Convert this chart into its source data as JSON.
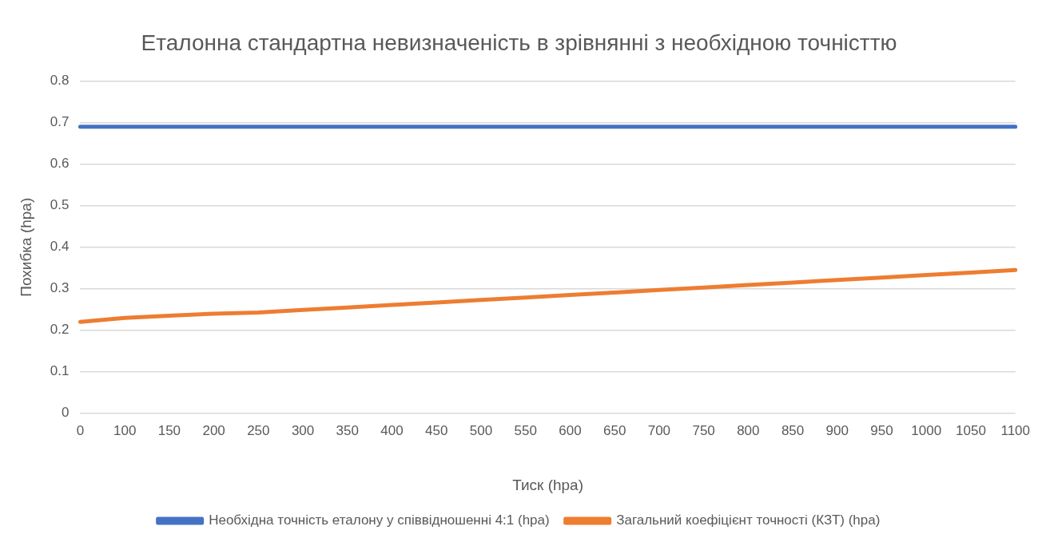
{
  "chart_data": {
    "type": "line",
    "title": "Еталонна стандартна невизначеність в зрівнянні з необхідною точністтю",
    "xlabel": "Тиск (hpa)",
    "ylabel": "Похибка (hpa)",
    "categories": [
      "0",
      "100",
      "150",
      "200",
      "250",
      "300",
      "350",
      "400",
      "450",
      "500",
      "550",
      "600",
      "650",
      "700",
      "750",
      "800",
      "850",
      "900",
      "950",
      "1000",
      "1050",
      "1100"
    ],
    "series": [
      {
        "name": "Необхідна точність еталону у співвідношенні 4:1 (hpa)",
        "color": "#4472c4",
        "values": [
          0.69,
          0.69,
          0.69,
          0.69,
          0.69,
          0.69,
          0.69,
          0.69,
          0.69,
          0.69,
          0.69,
          0.69,
          0.69,
          0.69,
          0.69,
          0.69,
          0.69,
          0.69,
          0.69,
          0.69,
          0.69,
          0.69
        ]
      },
      {
        "name": "Загальний коефіцієнт точності (КЗТ) (hpa)",
        "color": "#ed7d31",
        "values": [
          0.22,
          0.23,
          0.235,
          0.24,
          0.243,
          0.249,
          0.255,
          0.261,
          0.267,
          0.273,
          0.279,
          0.285,
          0.291,
          0.297,
          0.303,
          0.309,
          0.315,
          0.321,
          0.327,
          0.333,
          0.339,
          0.345
        ]
      }
    ],
    "ylim": [
      0,
      0.8
    ],
    "yticks": [
      0,
      0.1,
      0.2,
      0.3,
      0.4,
      0.5,
      0.6,
      0.7,
      0.8
    ],
    "grid": "y",
    "legend": "bottom",
    "marker": "none",
    "line_style": "solid"
  }
}
